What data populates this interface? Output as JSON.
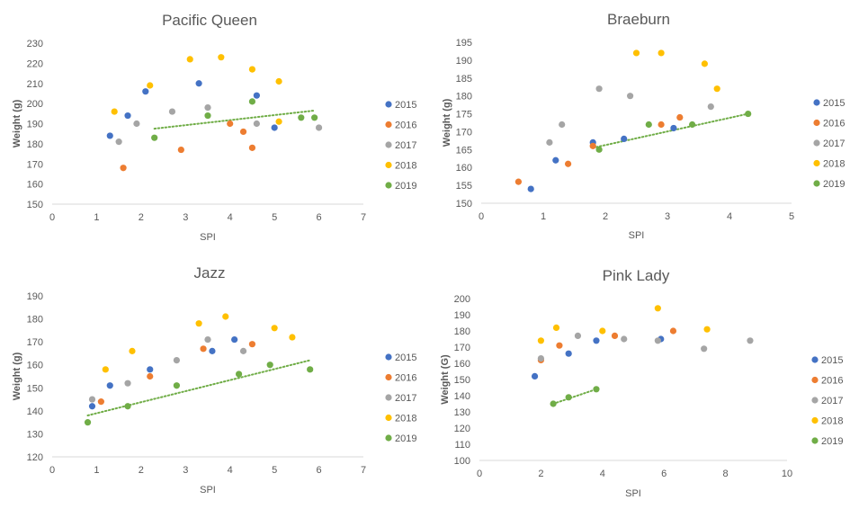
{
  "legend_labels": [
    "2015",
    "2016",
    "2017",
    "2018",
    "2019"
  ],
  "colors": {
    "2015": "#4472C4",
    "2016": "#ED7D31",
    "2017": "#A5A5A5",
    "2018": "#FFC000",
    "2019": "#70AD47",
    "axis_text": "#595959",
    "title_text": "#595959",
    "trendline": "#70AD47"
  },
  "chart_data": [
    {
      "type": "scatter",
      "title": "Pacific Queen",
      "xlabel": "SPI",
      "ylabel": "Weight (g)",
      "xlim": [
        0,
        7
      ],
      "ylim": [
        150,
        230
      ],
      "xticks": [
        0,
        1,
        2,
        3,
        4,
        5,
        6,
        7
      ],
      "yticks": [
        150,
        160,
        170,
        180,
        190,
        200,
        210,
        220,
        230
      ],
      "grid": false,
      "legend_position": "right",
      "trendline": {
        "series": "2019",
        "style": "dotted",
        "x": [
          2.3,
          5.9
        ],
        "y": [
          187.5,
          196.5
        ]
      },
      "series": [
        {
          "name": "2015",
          "x": [
            1.3,
            1.7,
            2.1,
            3.3,
            4.6,
            5.0
          ],
          "y": [
            184,
            194,
            206,
            210,
            204,
            188
          ]
        },
        {
          "name": "2016",
          "x": [
            1.6,
            2.9,
            4.0,
            4.3,
            4.5
          ],
          "y": [
            168,
            177,
            190,
            186,
            178
          ]
        },
        {
          "name": "2017",
          "x": [
            1.5,
            1.9,
            2.7,
            3.5,
            4.6,
            6.0
          ],
          "y": [
            181,
            190,
            196,
            198,
            190,
            188
          ]
        },
        {
          "name": "2018",
          "x": [
            1.4,
            2.2,
            3.1,
            3.8,
            4.5,
            5.1,
            5.1
          ],
          "y": [
            196,
            209,
            222,
            223,
            217,
            211,
            191
          ]
        },
        {
          "name": "2019",
          "x": [
            2.3,
            3.5,
            4.5,
            5.6,
            5.9
          ],
          "y": [
            183,
            194,
            201,
            193,
            193
          ]
        }
      ]
    },
    {
      "type": "scatter",
      "title": "Braeburn",
      "xlabel": "SPI",
      "ylabel": "Weight (g)",
      "xlim": [
        0,
        5
      ],
      "ylim": [
        150,
        195
      ],
      "xticks": [
        0,
        1,
        2,
        3,
        4,
        5
      ],
      "yticks": [
        150,
        155,
        160,
        165,
        170,
        175,
        180,
        185,
        190,
        195
      ],
      "grid": false,
      "legend_position": "right",
      "trendline": {
        "series": "2019",
        "style": "dotted",
        "x": [
          1.8,
          4.3
        ],
        "y": [
          165.5,
          175.0
        ]
      },
      "series": [
        {
          "name": "2015",
          "x": [
            0.8,
            1.2,
            1.8,
            2.3,
            3.1
          ],
          "y": [
            154,
            162,
            167,
            168,
            171
          ]
        },
        {
          "name": "2016",
          "x": [
            0.6,
            1.4,
            1.8,
            2.9,
            3.2
          ],
          "y": [
            156,
            161,
            166,
            172,
            174
          ]
        },
        {
          "name": "2017",
          "x": [
            1.1,
            1.3,
            1.9,
            2.4,
            3.7
          ],
          "y": [
            167,
            172,
            182,
            180,
            177
          ]
        },
        {
          "name": "2018",
          "x": [
            2.5,
            2.9,
            3.6,
            3.8
          ],
          "y": [
            192,
            192,
            189,
            182
          ]
        },
        {
          "name": "2019",
          "x": [
            1.9,
            2.7,
            3.4,
            4.3
          ],
          "y": [
            165,
            172,
            172,
            175
          ]
        }
      ]
    },
    {
      "type": "scatter",
      "title": "Jazz",
      "xlabel": "SPI",
      "ylabel": "Weight (g)",
      "xlim": [
        0,
        7
      ],
      "ylim": [
        120,
        190
      ],
      "xticks": [
        0,
        1,
        2,
        3,
        4,
        5,
        6,
        7
      ],
      "yticks": [
        120,
        130,
        140,
        150,
        160,
        170,
        180,
        190
      ],
      "grid": false,
      "legend_position": "right",
      "trendline": {
        "series": "2019",
        "style": "dotted",
        "x": [
          0.8,
          5.8
        ],
        "y": [
          138.0,
          162.0
        ]
      },
      "series": [
        {
          "name": "2015",
          "x": [
            0.9,
            1.3,
            2.2,
            3.6,
            4.1
          ],
          "y": [
            142,
            151,
            158,
            166,
            171
          ]
        },
        {
          "name": "2016",
          "x": [
            1.1,
            2.2,
            3.4,
            4.5
          ],
          "y": [
            144,
            155,
            167,
            169
          ]
        },
        {
          "name": "2017",
          "x": [
            0.9,
            1.7,
            2.8,
            3.5,
            4.3
          ],
          "y": [
            145,
            152,
            162,
            171,
            166
          ]
        },
        {
          "name": "2018",
          "x": [
            1.2,
            1.8,
            3.3,
            3.9,
            5.0,
            5.4
          ],
          "y": [
            158,
            166,
            178,
            181,
            176,
            172
          ]
        },
        {
          "name": "2019",
          "x": [
            0.8,
            1.7,
            2.8,
            4.2,
            4.9,
            5.8
          ],
          "y": [
            135,
            142,
            151,
            156,
            160,
            158
          ]
        }
      ]
    },
    {
      "type": "scatter",
      "title": "Pink Lady",
      "xlabel": "SPI",
      "ylabel": "Weight (G)",
      "xlim": [
        0,
        10
      ],
      "ylim": [
        100,
        200
      ],
      "xticks": [
        0,
        2,
        4,
        6,
        8,
        10
      ],
      "yticks": [
        100,
        110,
        120,
        130,
        140,
        150,
        160,
        170,
        180,
        190,
        200
      ],
      "grid": false,
      "legend_position": "right",
      "trendline": {
        "series": "2019",
        "style": "dotted",
        "x": [
          2.4,
          3.8
        ],
        "y": [
          135.0,
          144.0
        ]
      },
      "series": [
        {
          "name": "2015",
          "x": [
            1.8,
            2.9,
            3.8,
            5.9
          ],
          "y": [
            152,
            166,
            174,
            175
          ]
        },
        {
          "name": "2016",
          "x": [
            2.0,
            2.6,
            4.4,
            6.3
          ],
          "y": [
            162,
            171,
            177,
            180
          ]
        },
        {
          "name": "2017",
          "x": [
            2.0,
            3.2,
            4.7,
            5.8,
            7.3,
            8.8
          ],
          "y": [
            163,
            177,
            175,
            174,
            169,
            174
          ]
        },
        {
          "name": "2018",
          "x": [
            2.0,
            2.5,
            4.0,
            5.8,
            7.4
          ],
          "y": [
            174,
            182,
            180,
            194,
            181
          ]
        },
        {
          "name": "2019",
          "x": [
            2.4,
            2.9,
            3.8
          ],
          "y": [
            135,
            139,
            144
          ]
        }
      ]
    }
  ]
}
